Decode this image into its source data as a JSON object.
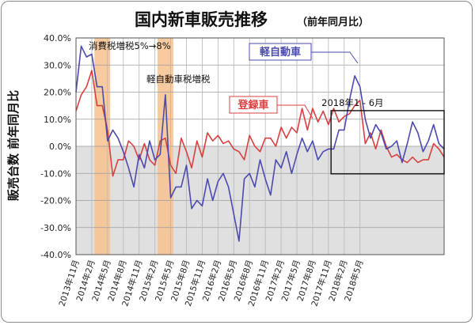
{
  "chart_data": {
    "type": "line",
    "title": "国内新車販売推移",
    "subtitle": "（前年同月比）",
    "ylabel": "販売台数 前年同月比",
    "ylim": [
      -40,
      40
    ],
    "yticks": [
      -40,
      -30,
      -20,
      -10,
      0,
      10,
      20,
      30,
      40
    ],
    "ytick_labels": [
      "-40.0%",
      "-30.0%",
      "-20.0%",
      "-10.0%",
      "0.0%",
      "10.0%",
      "20.0%",
      "30.0%",
      "40.0%"
    ],
    "x_start": "2013-11",
    "xtick_labels": [
      "2013年11月",
      "2014年2月",
      "2014年5月",
      "2014年8月",
      "2014年11月",
      "2015年2月",
      "2015年5月",
      "2015年8月",
      "2015年11月",
      "2016年2月",
      "2016年5月",
      "2016年8月",
      "2016年11月",
      "2017年2月",
      "2017年5月",
      "2017年8月",
      "2017年11月",
      "2018年2月",
      "2018年5月"
    ],
    "highlight_bands": [
      {
        "from": "2014-03",
        "to": "2014-05"
      },
      {
        "from": "2015-03",
        "to": "2015-05"
      }
    ],
    "annotations": [
      {
        "text": "消費税増税5%→8%",
        "at": "2014-04"
      },
      {
        "text": "軽自動車税増税",
        "at": "2015-04"
      },
      {
        "text": "2018年1 - 6月",
        "box_from": "2018-01",
        "box_to": "2018-06",
        "y_range": [
          -9,
          12
        ]
      }
    ],
    "series": [
      {
        "name": "軽自動車",
        "color": "#4a4ab0",
        "values": [
          20,
          37,
          33,
          34,
          22,
          22,
          2,
          6,
          3,
          -2,
          -8,
          -15,
          -3,
          -8,
          2,
          -5,
          -3,
          19,
          -19,
          -15,
          -15,
          -7,
          -23,
          -20,
          -22,
          -12,
          -20,
          -13,
          -10,
          -15,
          -25,
          -35,
          -12,
          -10,
          -15,
          -5,
          -12,
          -18,
          -5,
          -8,
          -2,
          -10,
          -3,
          3,
          -2,
          2,
          -5,
          -2,
          -1,
          -1,
          6,
          6,
          17,
          26,
          22,
          10,
          3,
          8,
          5,
          -1,
          0,
          2,
          -6,
          1,
          9,
          5,
          -2,
          2,
          8,
          1,
          -1
        ]
      },
      {
        "name": "登録車",
        "color": "#d84040",
        "values": [
          13,
          19,
          22,
          28,
          15,
          15,
          6,
          -11,
          -5,
          -5,
          2,
          0,
          -5,
          1,
          -5,
          -7,
          2,
          3,
          -7,
          -10,
          3,
          -2,
          -8,
          2,
          -4,
          5,
          2,
          4,
          1,
          2,
          -1,
          -2,
          -5,
          4,
          0,
          -2,
          3,
          3,
          0,
          7,
          3,
          7,
          5,
          14,
          6,
          14,
          9,
          13,
          8,
          14,
          9,
          11,
          12,
          15,
          17,
          1,
          5,
          -1,
          6,
          0,
          -4,
          -3,
          -5,
          -6,
          -4,
          -6,
          -5,
          -5,
          1,
          -1,
          -4
        ]
      }
    ],
    "styling": {
      "negative_region_fill": "#e0e0e0",
      "band_color": "#f7c18f",
      "grid": "vertical lines at x-ticks, horizontal at y-ticks",
      "legend": "inline labels in boxes with leader lines"
    }
  }
}
